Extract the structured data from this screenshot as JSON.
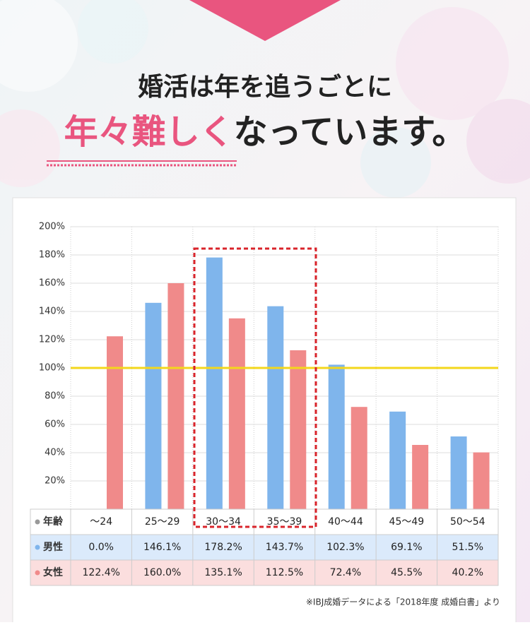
{
  "header": {
    "line1": "婚活は年を追うごとに",
    "highlight": "年々難しく",
    "line2": "なっています。"
  },
  "chart_data": {
    "type": "bar",
    "category_header": "年齢",
    "categories": [
      "～24",
      "25～29",
      "30～34",
      "35～39",
      "40～44",
      "45～49",
      "50～54"
    ],
    "series": [
      {
        "name": "男性",
        "color": "#7fb5ec",
        "values": [
          0.0,
          146.1,
          178.2,
          143.7,
          102.3,
          69.1,
          51.5
        ],
        "value_labels": [
          "0.0%",
          "146.1%",
          "178.2%",
          "143.7%",
          "102.3%",
          "69.1%",
          "51.5%"
        ]
      },
      {
        "name": "女性",
        "color": "#f08a8a",
        "values": [
          122.4,
          160.0,
          135.1,
          112.5,
          72.4,
          45.5,
          40.2
        ],
        "value_labels": [
          "122.4%",
          "160.0%",
          "135.1%",
          "112.5%",
          "72.4%",
          "45.5%",
          "40.2%"
        ]
      }
    ],
    "ylim": [
      0,
      200
    ],
    "yticks": [
      {
        "value": 20,
        "label": "20%"
      },
      {
        "value": 40,
        "label": "40%"
      },
      {
        "value": 60,
        "label": "60%"
      },
      {
        "value": 80,
        "label": "80%"
      },
      {
        "value": 100,
        "label": "100%"
      },
      {
        "value": 120,
        "label": "120%"
      },
      {
        "value": 140,
        "label": "140%"
      },
      {
        "value": 160,
        "label": "160%"
      },
      {
        "value": 180,
        "label": "180%"
      },
      {
        "value": 200,
        "label": "200%"
      }
    ],
    "grid": true,
    "reference_line": {
      "value": 100,
      "color": "#f3d71c"
    }
  },
  "source": "※IBJ成婚データによる「2018年度 成婚白書」より"
}
